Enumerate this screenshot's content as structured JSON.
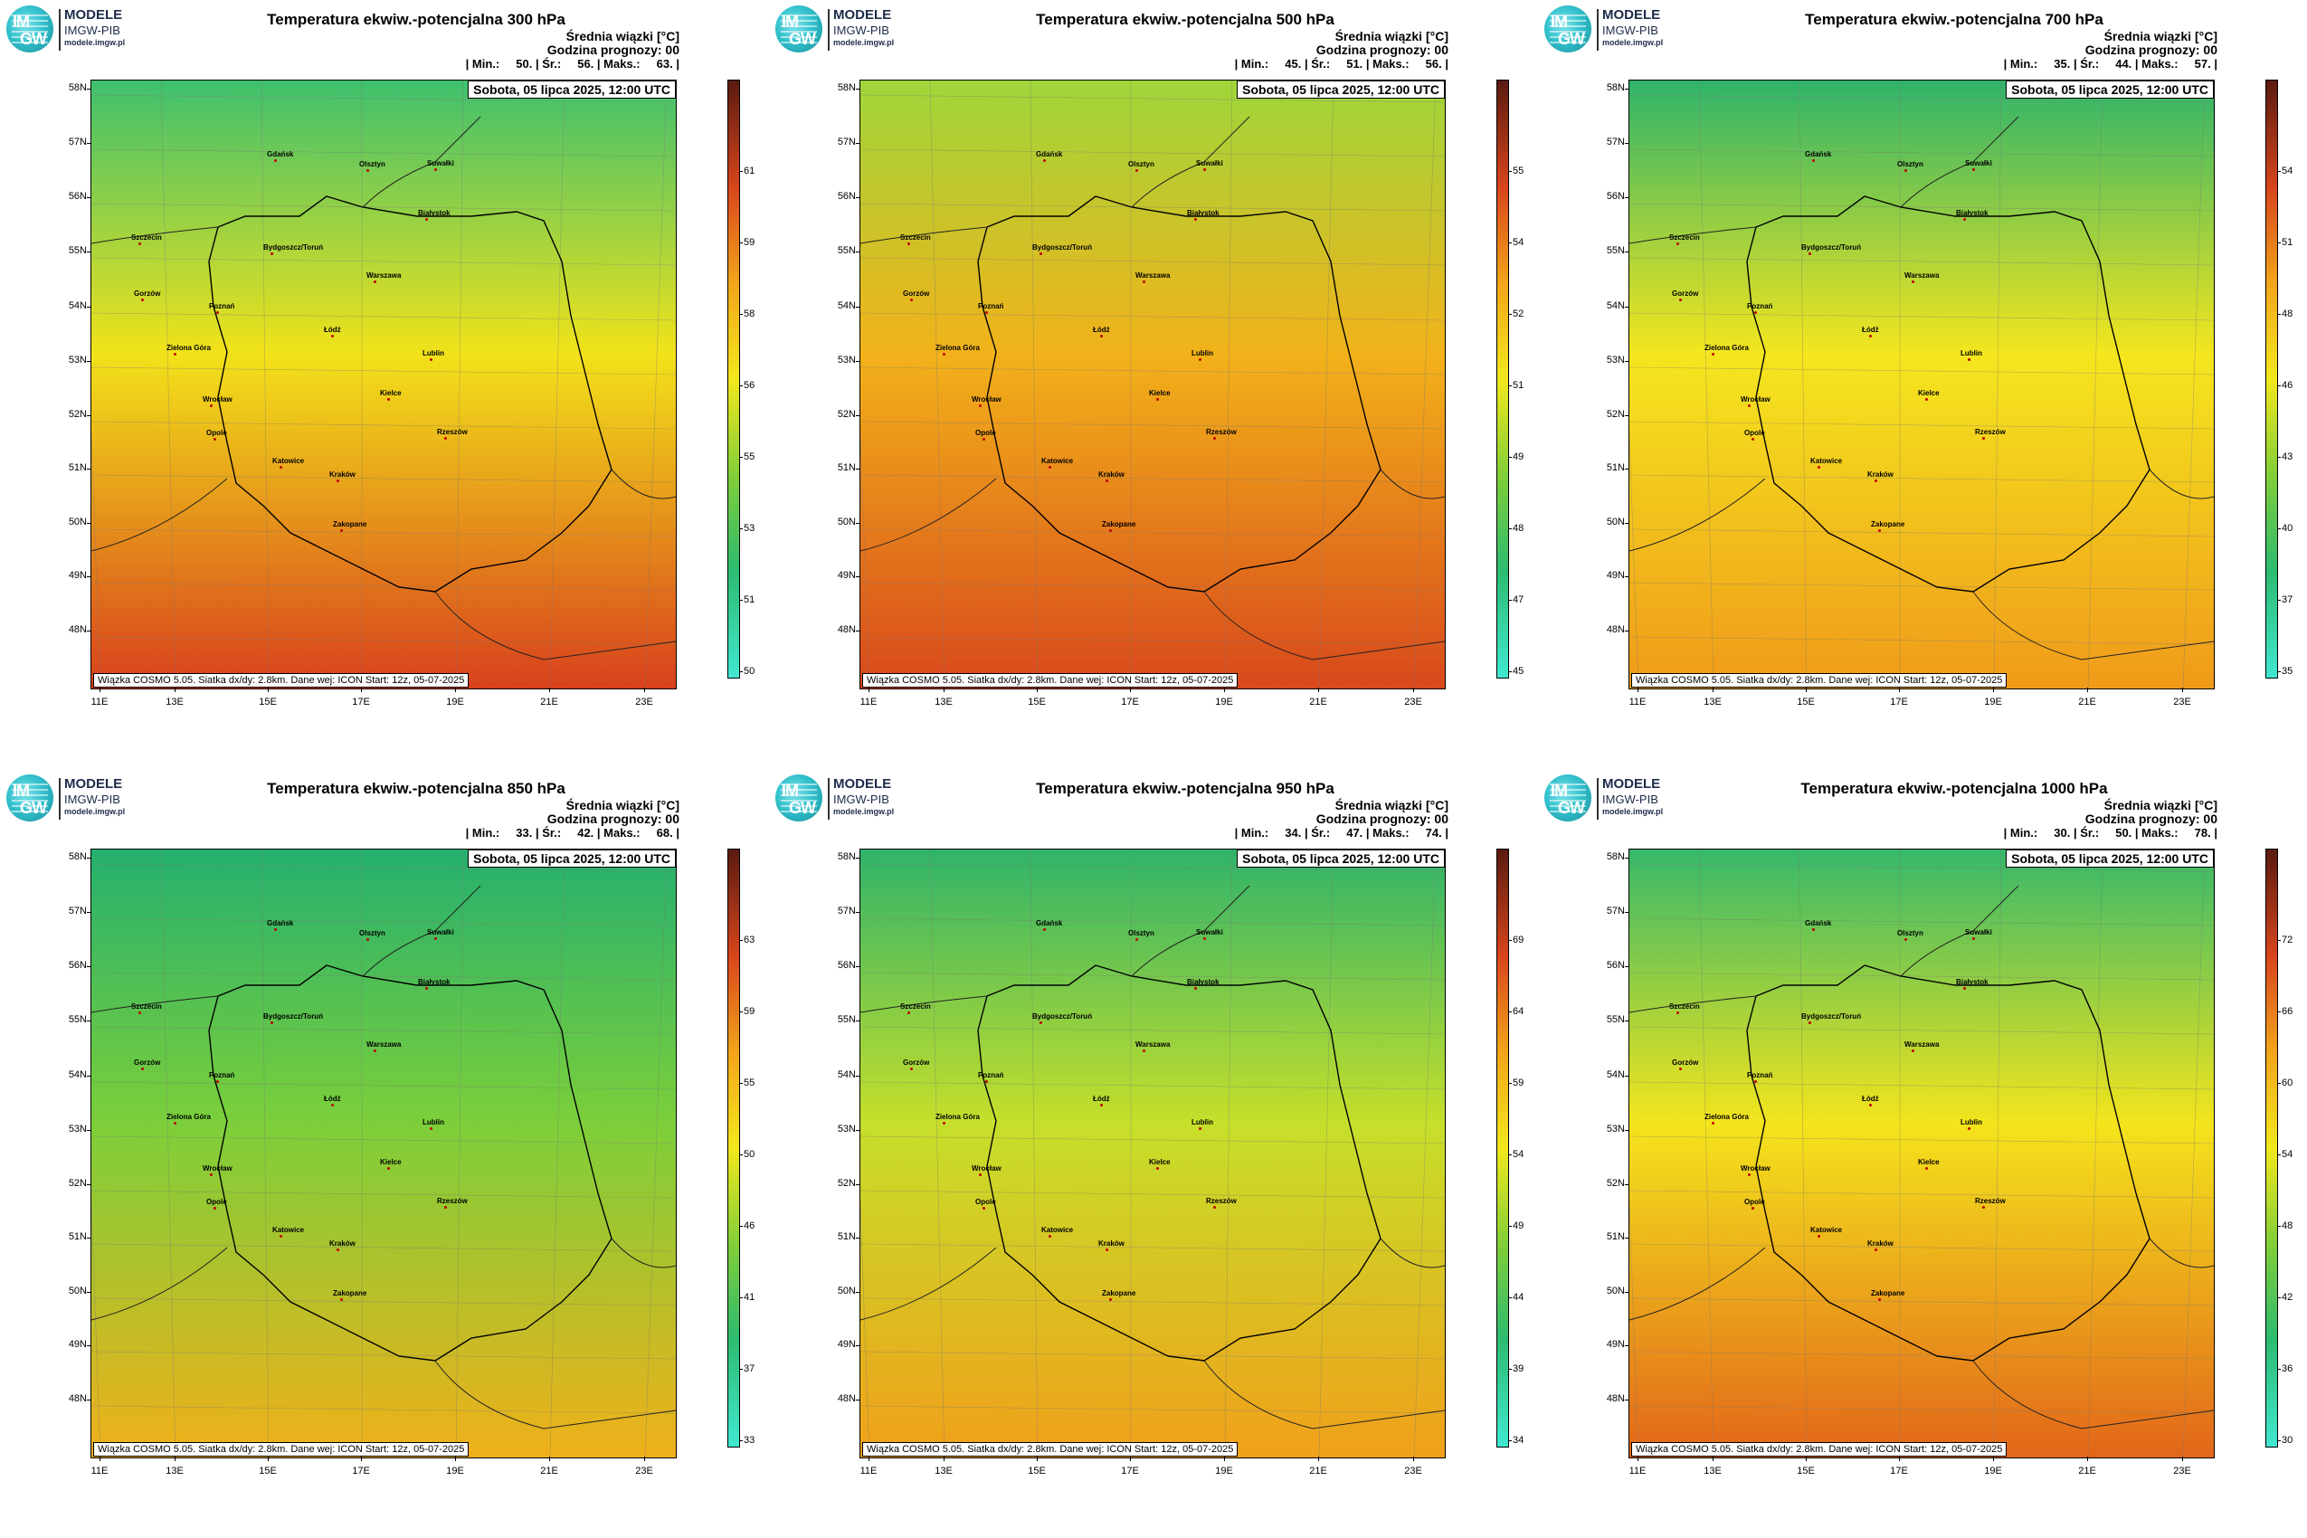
{
  "logo": {
    "line1": "MODELE",
    "line2": "IMGW-PIB",
    "line3": "modele.imgw.pl",
    "mark_top": "IM",
    "mark_bottom": "GW"
  },
  "common": {
    "units_line1": "Średnia wiązki [°C]",
    "units_line2": "Godzina prognozy: 00",
    "date": "Sobota, 05 lipca 2025, 12:00 UTC",
    "footer": "Wiązka COSMO 5.05. Siatka dx/dy: 2.8km. Dane wej: ICON Start: 12z, 05-07-2025",
    "lat_labels": [
      "58N",
      "57N",
      "56N",
      "55N",
      "54N",
      "53N",
      "52N",
      "51N",
      "50N",
      "49N",
      "48N"
    ],
    "lon_labels": [
      "11E",
      "13E",
      "15E",
      "17E",
      "19E",
      "21E",
      "23E"
    ]
  },
  "cities": [
    {
      "name": "Gdańsk"
    },
    {
      "name": "Olsztyn"
    },
    {
      "name": "Suwałki"
    },
    {
      "name": "Szczecin"
    },
    {
      "name": "Białystok"
    },
    {
      "name": "Bydgoszcz/Toruń"
    },
    {
      "name": "Gorzów"
    },
    {
      "name": "Warszawa"
    },
    {
      "name": "Poznań"
    },
    {
      "name": "Łódź"
    },
    {
      "name": "Zielona Góra"
    },
    {
      "name": "Lublin"
    },
    {
      "name": "Wrocław"
    },
    {
      "name": "Kielce"
    },
    {
      "name": "Opole"
    },
    {
      "name": "Rzeszów"
    },
    {
      "name": "Katowice"
    },
    {
      "name": "Kraków"
    },
    {
      "name": "Zakopane"
    }
  ],
  "panels": [
    {
      "title": "Temperatura ekwiw.-potencjalna 300 hPa",
      "stats": "| Min.:     50. | Śr.:     56. | Maks.:     63. |",
      "colorbar": [
        "50",
        "51",
        "53",
        "55",
        "56",
        "58",
        "59",
        "61"
      ],
      "colors": {
        "north": "#3ec06e",
        "mid": "#f2e21a",
        "south": "#d8401c"
      }
    },
    {
      "title": "Temperatura ekwiw.-potencjalna 500 hPa",
      "stats": "| Min.:     45. | Śr.:     51. | Maks.:     56. |",
      "colorbar": [
        "45",
        "47",
        "48",
        "49",
        "51",
        "52",
        "54",
        "55"
      ],
      "colors": {
        "north": "#9fd63a",
        "mid": "#f2b21a",
        "south": "#d8481c"
      }
    },
    {
      "title": "Temperatura ekwiw.-potencjalna 700 hPa",
      "stats": "| Min.:     35. | Śr.:     44. | Maks.:     57. |",
      "colorbar": [
        "35",
        "37",
        "40",
        "43",
        "46",
        "48",
        "51",
        "54"
      ],
      "colors": {
        "north": "#2fb36a",
        "mid": "#f4e61e",
        "south": "#f09a1a"
      }
    },
    {
      "title": "Temperatura ekwiw.-potencjalna 850 hPa",
      "stats": "| Min.:     33. | Śr.:     42. | Maks.:     68. |",
      "colorbar": [
        "33",
        "37",
        "41",
        "46",
        "50",
        "55",
        "59",
        "63"
      ],
      "colors": {
        "north": "#25b06e",
        "mid": "#7ccf3a",
        "south": "#f0b01a"
      }
    },
    {
      "title": "Temperatura ekwiw.-potencjalna 950 hPa",
      "stats": "| Min.:     34. | Śr.:     47. | Maks.:     74. |",
      "colorbar": [
        "34",
        "39",
        "44",
        "49",
        "54",
        "59",
        "64",
        "69"
      ],
      "colors": {
        "north": "#2fb36a",
        "mid": "#c6df2a",
        "south": "#f0a01a"
      }
    },
    {
      "title": "Temperatura ekwiw.-potencjalna 1000 hPa",
      "stats": "| Min.:     30. | Śr.:     50. | Maks.:     78. |",
      "colorbar": [
        "30",
        "36",
        "42",
        "48",
        "54",
        "60",
        "66",
        "72"
      ],
      "colors": {
        "north": "#36b86a",
        "mid": "#f4e41c",
        "south": "#e2661a"
      }
    }
  ]
}
